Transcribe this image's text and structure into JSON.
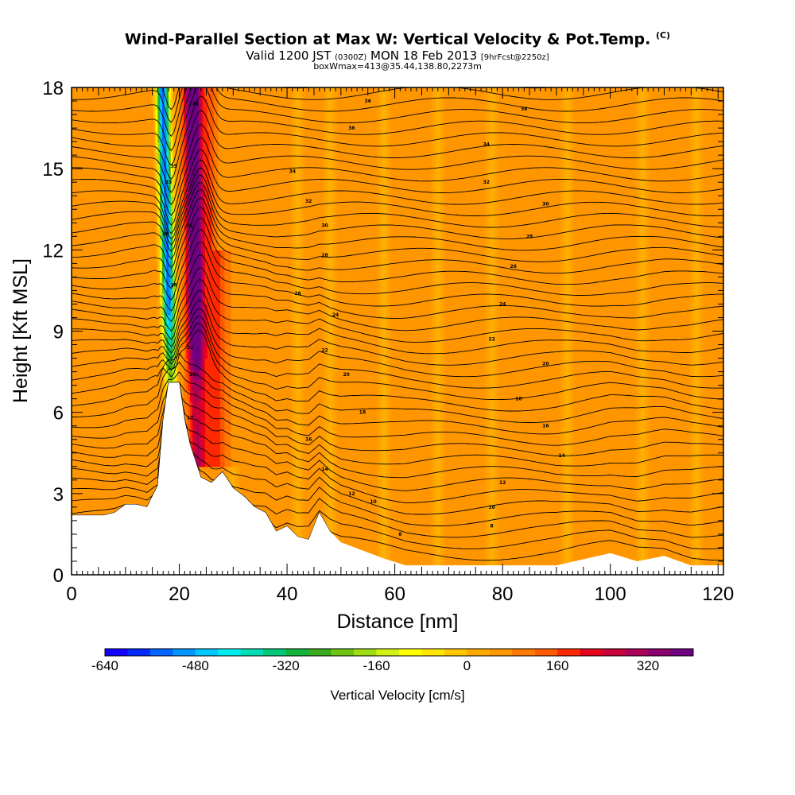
{
  "title": {
    "main": "Wind-Parallel Section at Max W: Vertical Velocity & Pot.Temp.",
    "mark": "(C)"
  },
  "subtitle": {
    "valid": "Valid 1200 JST",
    "zulu": "(0300Z)",
    "date": "MON 18 Feb 2013",
    "fcst": "[9hrFcst@2250z]",
    "box": "boxWmax=413@35.44,138.80,2273m"
  },
  "chart_data": {
    "type": "heatmap",
    "xlabel": "Distance [nm]",
    "ylabel": "Height [Kft MSL]",
    "xlim": [
      0,
      121
    ],
    "ylim": [
      0,
      18
    ],
    "x_ticks": [
      0,
      20,
      40,
      60,
      80,
      100,
      120
    ],
    "y_ticks": [
      0,
      3,
      6,
      9,
      12,
      15,
      18
    ],
    "terrain": {
      "x": [
        0,
        2,
        4,
        6,
        8,
        10,
        12,
        14,
        16,
        17,
        18,
        20,
        21,
        22,
        24,
        26,
        28,
        30,
        32,
        34,
        36,
        38,
        40,
        42,
        44,
        46,
        48,
        50,
        54,
        58,
        62,
        70,
        80,
        90,
        100,
        105,
        110,
        115,
        121
      ],
      "kft": [
        2.2,
        2.2,
        2.2,
        2.2,
        2.3,
        2.6,
        2.6,
        2.5,
        3.3,
        5.7,
        7.1,
        7.1,
        5.7,
        4.8,
        3.6,
        3.4,
        3.8,
        3.2,
        2.9,
        2.5,
        2.3,
        1.6,
        1.8,
        1.4,
        1.3,
        2.3,
        1.6,
        1.2,
        0.9,
        0.6,
        0.35,
        0.35,
        0.35,
        0.35,
        0.8,
        0.5,
        0.7,
        0.35,
        0.35
      ]
    },
    "velocity_field_note_values": {
      "downdraft_max_cm_s": -600,
      "updraft_max_cm_s": 413,
      "background_cm_s": 60
    },
    "theta_contours": {
      "units": "C",
      "labels": [
        {
          "x": 55,
          "y": 17.5,
          "v": "36"
        },
        {
          "x": 84,
          "y": 17.2,
          "v": "36"
        },
        {
          "x": 52,
          "y": 16.5,
          "v": "36"
        },
        {
          "x": 77,
          "y": 15.9,
          "v": "34"
        },
        {
          "x": 41,
          "y": 14.9,
          "v": "34"
        },
        {
          "x": 77,
          "y": 14.5,
          "v": "32"
        },
        {
          "x": 44,
          "y": 13.8,
          "v": "32"
        },
        {
          "x": 88,
          "y": 13.7,
          "v": "30"
        },
        {
          "x": 47,
          "y": 12.9,
          "v": "30"
        },
        {
          "x": 85,
          "y": 12.5,
          "v": "28"
        },
        {
          "x": 47,
          "y": 11.8,
          "v": "28"
        },
        {
          "x": 82,
          "y": 11.4,
          "v": "26"
        },
        {
          "x": 42,
          "y": 10.4,
          "v": "26"
        },
        {
          "x": 80,
          "y": 10.0,
          "v": "24"
        },
        {
          "x": 49,
          "y": 9.6,
          "v": "24"
        },
        {
          "x": 78,
          "y": 8.7,
          "v": "22"
        },
        {
          "x": 47,
          "y": 8.3,
          "v": "22"
        },
        {
          "x": 88,
          "y": 7.8,
          "v": "20"
        },
        {
          "x": 51,
          "y": 7.4,
          "v": "20"
        },
        {
          "x": 83,
          "y": 6.5,
          "v": "18"
        },
        {
          "x": 54,
          "y": 6.0,
          "v": "18"
        },
        {
          "x": 88,
          "y": 5.5,
          "v": "16"
        },
        {
          "x": 44,
          "y": 5.0,
          "v": "16"
        },
        {
          "x": 91,
          "y": 4.4,
          "v": "14"
        },
        {
          "x": 47,
          "y": 3.9,
          "v": "14"
        },
        {
          "x": 80,
          "y": 3.4,
          "v": "12"
        },
        {
          "x": 52,
          "y": 3.0,
          "v": "12"
        },
        {
          "x": 56,
          "y": 2.7,
          "v": "10"
        },
        {
          "x": 78,
          "y": 2.5,
          "v": "10"
        },
        {
          "x": 78,
          "y": 1.8,
          "v": "8"
        },
        {
          "x": 61,
          "y": 1.5,
          "v": "8"
        },
        {
          "x": 19,
          "y": 15.1,
          "v": "35"
        },
        {
          "x": 18,
          "y": 14.5,
          "v": "33"
        },
        {
          "x": 17.5,
          "y": 12.6,
          "v": "30"
        },
        {
          "x": 19,
          "y": 10.7,
          "v": "26"
        },
        {
          "x": 22,
          "y": 8.4,
          "v": "22"
        },
        {
          "x": 22.5,
          "y": 7.4,
          "v": "20"
        },
        {
          "x": 22,
          "y": 5.8,
          "v": "17"
        },
        {
          "x": 23,
          "y": 17.4,
          "v": "36"
        },
        {
          "x": 22,
          "y": 12.9,
          "v": "31"
        }
      ]
    },
    "colorbar": {
      "title": "Vertical Velocity [cm/s]",
      "range": [
        -640,
        400
      ],
      "step": 40,
      "labels": [
        "-640",
        "-480",
        "-320",
        "-160",
        "0",
        "160",
        "320"
      ],
      "colors": [
        "#1400ff",
        "#0028ff",
        "#0064ff",
        "#0096ff",
        "#00c8ff",
        "#00ebeb",
        "#00dcb4",
        "#00c878",
        "#14b43c",
        "#3caa1e",
        "#6ec314",
        "#a0dc14",
        "#d2f014",
        "#ffff00",
        "#ffe600",
        "#ffc800",
        "#ffaa00",
        "#ff9600",
        "#ff7800",
        "#ff5a00",
        "#ff2800",
        "#e6001e",
        "#c8003c",
        "#aa005a",
        "#8c006e",
        "#6e0082"
      ]
    }
  }
}
